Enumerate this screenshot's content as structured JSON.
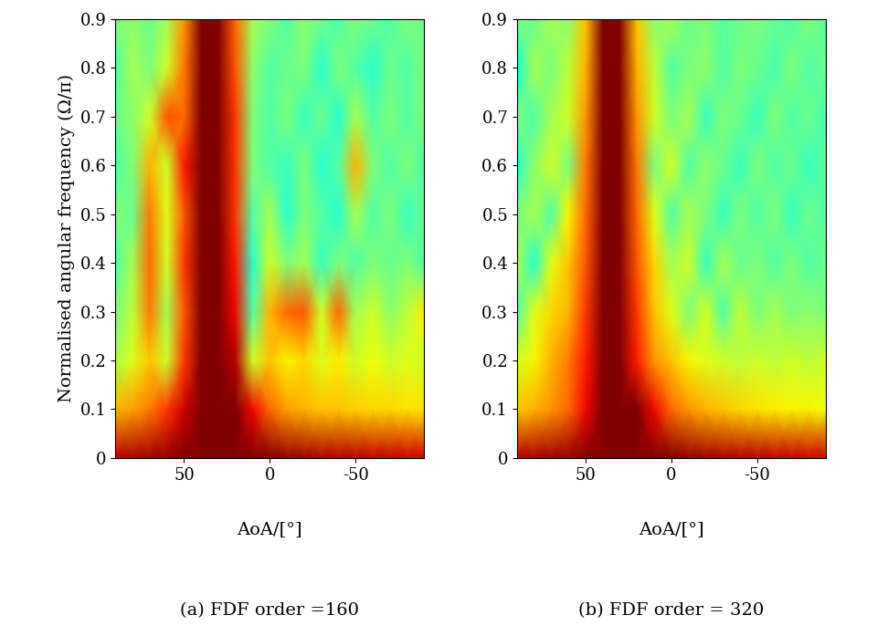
{
  "chart_data": [
    {
      "type": "heatmap",
      "title": "(a) FDF order =160",
      "x_label": "AoA/[°]",
      "y_label": "Normalised angular frequency (Ω/π)",
      "xlim": [
        90,
        -90
      ],
      "xticks": [
        50,
        0,
        -50
      ],
      "ylim": [
        0,
        0.9
      ],
      "yticks": [
        0,
        0.1,
        0.2,
        0.3,
        0.4,
        0.5,
        0.6,
        0.7,
        0.8,
        0.9
      ],
      "color": "jet",
      "clim": [
        0,
        1
      ],
      "x": [
        90,
        80,
        70,
        60,
        50,
        40,
        30,
        20,
        10,
        0,
        -10,
        -20,
        -30,
        -40,
        -50,
        -60,
        -70,
        -80,
        -90
      ],
      "y": [
        0,
        0.1,
        0.2,
        0.3,
        0.4,
        0.5,
        0.6,
        0.7,
        0.8,
        0.9
      ],
      "cells": [
        [
          0.95,
          0.96,
          0.97,
          0.98,
          1,
          1,
          1,
          1,
          1,
          1,
          0.98,
          0.97,
          0.96,
          0.95,
          0.95,
          0.94,
          0.94,
          0.93,
          0.93
        ],
        [
          0.72,
          0.74,
          0.78,
          0.85,
          0.93,
          1,
          1,
          1,
          0.9,
          0.8,
          0.74,
          0.72,
          0.7,
          0.7,
          0.69,
          0.68,
          0.68,
          0.67,
          0.67
        ],
        [
          0.55,
          0.62,
          0.7,
          0.6,
          0.85,
          1,
          1,
          0.95,
          0.6,
          0.7,
          0.65,
          0.68,
          0.62,
          0.66,
          0.6,
          0.64,
          0.6,
          0.62,
          0.6
        ],
        [
          0.5,
          0.58,
          0.78,
          0.55,
          0.82,
          1,
          1,
          0.9,
          0.45,
          0.72,
          0.8,
          0.82,
          0.6,
          0.8,
          0.55,
          0.6,
          0.52,
          0.58,
          0.66
        ],
        [
          0.45,
          0.55,
          0.8,
          0.6,
          0.85,
          1,
          1,
          0.88,
          0.4,
          0.6,
          0.5,
          0.55,
          0.42,
          0.5,
          0.45,
          0.5,
          0.48,
          0.5,
          0.45
        ],
        [
          0.5,
          0.48,
          0.78,
          0.62,
          0.82,
          1,
          1,
          0.85,
          0.45,
          0.55,
          0.4,
          0.5,
          0.45,
          0.4,
          0.55,
          0.45,
          0.5,
          0.42,
          0.48
        ],
        [
          0.45,
          0.5,
          0.72,
          0.6,
          0.88,
          1,
          1,
          0.85,
          0.5,
          0.45,
          0.42,
          0.5,
          0.4,
          0.45,
          0.72,
          0.5,
          0.45,
          0.5,
          0.45
        ],
        [
          0.48,
          0.52,
          0.6,
          0.82,
          0.8,
          1,
          1,
          0.85,
          0.5,
          0.45,
          0.5,
          0.42,
          0.48,
          0.4,
          0.55,
          0.45,
          0.5,
          0.45,
          0.5
        ],
        [
          0.45,
          0.55,
          0.5,
          0.6,
          0.78,
          1,
          1,
          0.82,
          0.52,
          0.45,
          0.48,
          0.5,
          0.4,
          0.5,
          0.45,
          0.4,
          0.48,
          0.45,
          0.5
        ],
        [
          0.5,
          0.52,
          0.48,
          0.55,
          0.75,
          1,
          1,
          0.8,
          0.55,
          0.5,
          0.45,
          0.52,
          0.48,
          0.45,
          0.5,
          0.48,
          0.45,
          0.5,
          0.48
        ]
      ]
    },
    {
      "type": "heatmap",
      "title": "(b) FDF order = 320",
      "x_label": "AoA/[°]",
      "xlim": [
        90,
        -90
      ],
      "xticks": [
        50,
        0,
        -50
      ],
      "ylim": [
        0,
        0.9
      ],
      "yticks": [
        0,
        0.1,
        0.2,
        0.3,
        0.4,
        0.5,
        0.6,
        0.7,
        0.8,
        0.9
      ],
      "color": "jet",
      "clim": [
        0,
        1
      ],
      "x": [
        90,
        80,
        70,
        60,
        50,
        40,
        30,
        20,
        10,
        0,
        -10,
        -20,
        -30,
        -40,
        -50,
        -60,
        -70,
        -80,
        -90
      ],
      "y": [
        0,
        0.1,
        0.2,
        0.3,
        0.4,
        0.5,
        0.6,
        0.7,
        0.8,
        0.9
      ],
      "cells": [
        [
          0.95,
          0.96,
          0.97,
          0.98,
          1,
          1,
          1,
          1,
          1,
          1,
          0.98,
          0.97,
          0.96,
          0.95,
          0.95,
          0.94,
          0.94,
          0.93,
          0.93
        ],
        [
          0.7,
          0.72,
          0.75,
          0.8,
          0.9,
          1,
          1,
          1,
          0.9,
          0.8,
          0.75,
          0.72,
          0.7,
          0.68,
          0.67,
          0.66,
          0.65,
          0.65,
          0.64
        ],
        [
          0.6,
          0.65,
          0.72,
          0.78,
          0.88,
          1,
          1,
          0.88,
          0.75,
          0.7,
          0.65,
          0.62,
          0.6,
          0.58,
          0.6,
          0.58,
          0.6,
          0.58,
          0.6
        ],
        [
          0.45,
          0.62,
          0.68,
          0.72,
          0.85,
          1,
          1,
          0.85,
          0.7,
          0.62,
          0.5,
          0.6,
          0.45,
          0.58,
          0.5,
          0.55,
          0.5,
          0.52,
          0.5
        ],
        [
          0.55,
          0.4,
          0.62,
          0.7,
          0.82,
          1,
          1,
          0.82,
          0.68,
          0.55,
          0.6,
          0.42,
          0.55,
          0.48,
          0.5,
          0.45,
          0.5,
          0.45,
          0.48
        ],
        [
          0.5,
          0.55,
          0.45,
          0.65,
          0.8,
          1,
          1,
          0.8,
          0.62,
          0.45,
          0.55,
          0.5,
          0.42,
          0.5,
          0.45,
          0.5,
          0.42,
          0.48,
          0.45
        ],
        [
          0.4,
          0.52,
          0.6,
          0.5,
          0.78,
          1,
          1,
          0.78,
          0.5,
          0.6,
          0.45,
          0.52,
          0.48,
          0.42,
          0.5,
          0.45,
          0.48,
          0.42,
          0.46
        ],
        [
          0.5,
          0.45,
          0.55,
          0.6,
          0.75,
          1,
          1,
          0.75,
          0.6,
          0.5,
          0.55,
          0.42,
          0.5,
          0.48,
          0.42,
          0.5,
          0.45,
          0.48,
          0.44
        ],
        [
          0.38,
          0.55,
          0.5,
          0.58,
          0.72,
          1,
          1,
          0.72,
          0.58,
          0.45,
          0.5,
          0.52,
          0.45,
          0.5,
          0.48,
          0.44,
          0.5,
          0.45,
          0.48
        ],
        [
          0.5,
          0.48,
          0.55,
          0.52,
          0.7,
          1,
          1,
          0.7,
          0.52,
          0.55,
          0.48,
          0.5,
          0.46,
          0.48,
          0.5,
          0.47,
          0.45,
          0.5,
          0.46
        ]
      ]
    }
  ]
}
